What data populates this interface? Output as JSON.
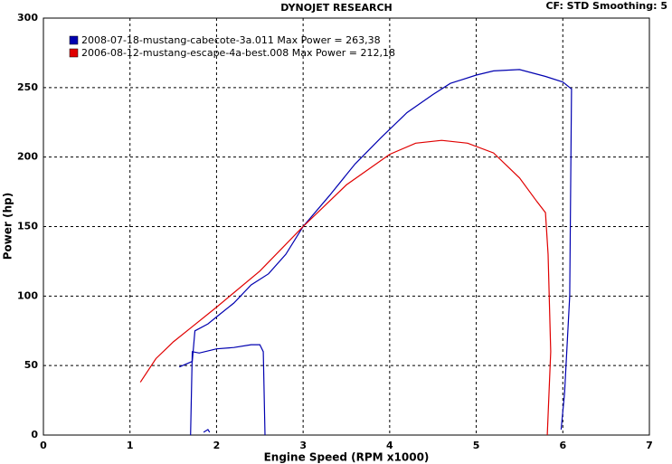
{
  "chart_data": {
    "type": "line",
    "title": "DYNOJET RESEARCH",
    "subtitle": "CF: STD  Smoothing: 5",
    "x_label": "Engine Speed (RPM x1000)",
    "y_label": "Power (hp)",
    "xlim": [
      0,
      7
    ],
    "xticks": [
      0,
      1,
      2,
      3,
      4,
      5,
      6,
      7
    ],
    "ylim": [
      0,
      300
    ],
    "yticks": [
      0,
      50,
      100,
      150,
      200,
      250,
      300
    ],
    "grid": true,
    "legend": "top-left",
    "series": [
      {
        "name": "2008-07-18-mustang-cabecote-3a.011 Max Power = 263,38",
        "color": "#0000b0",
        "x": [
          1.57,
          1.72,
          1.75,
          1.9,
          2.0,
          2.2,
          2.4,
          2.6,
          2.8,
          3.0,
          3.3,
          3.6,
          3.9,
          4.2,
          4.5,
          4.7,
          5.0,
          5.2,
          5.5,
          5.8,
          6.0,
          6.1,
          6.08,
          6.02,
          5.98,
          null,
          1.7,
          1.72,
          1.8,
          2.0,
          2.2,
          2.4,
          2.5,
          2.54,
          2.56,
          null,
          1.85,
          1.9,
          1.92
        ],
        "values": [
          49,
          53,
          75,
          80,
          85,
          95,
          108,
          116,
          130,
          150,
          172,
          195,
          214,
          232,
          245,
          253,
          259,
          262,
          263,
          258,
          254,
          249,
          100,
          30,
          4,
          null,
          0,
          60,
          59,
          62,
          63,
          65,
          65,
          60,
          0,
          null,
          2,
          4,
          2
        ]
      },
      {
        "name": "2006-08-12-mustang-escape-4a-best.008 Max Power = 212,18",
        "color": "#e00000",
        "x": [
          1.12,
          1.3,
          1.5,
          1.7,
          2.0,
          2.5,
          3.0,
          3.5,
          4.0,
          4.3,
          4.6,
          4.9,
          5.2,
          5.5,
          5.7,
          5.8,
          5.83,
          5.86,
          5.82
        ],
        "values": [
          38,
          55,
          67,
          77,
          92,
          118,
          150,
          180,
          202,
          210,
          212,
          210,
          203,
          185,
          168,
          160,
          130,
          60,
          0
        ]
      }
    ]
  }
}
